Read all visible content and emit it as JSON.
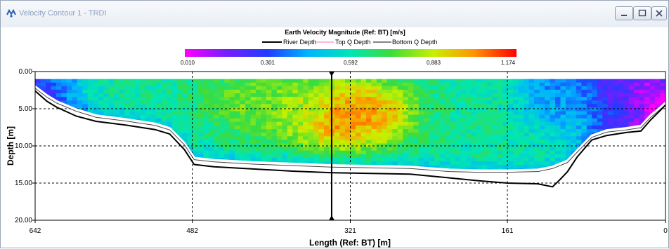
{
  "window": {
    "title": "Velocity Contour 1 - TRDI",
    "icons": {
      "app": "trdi-logo-icon",
      "minimize": "minimize-icon",
      "maximize": "maximize-icon",
      "close": "close-icon"
    }
  },
  "chart_data": {
    "type": "heatmap",
    "title": "Earth Velocity Magnitude (Ref: BT) [m/s]",
    "legend": {
      "placement": "top-center",
      "entries": [
        "River Depth",
        "Top Q Depth",
        "Bottom Q Depth"
      ]
    },
    "colorbar": {
      "ticks": [
        "0.010",
        "0.301",
        "0.592",
        "0.883",
        "1.174"
      ],
      "min": 0.01,
      "max": 1.174
    },
    "xlabel": "Length (Ref: BT) [m]",
    "ylabel": "Depth [m]",
    "xticks": [
      "642",
      "482",
      "321",
      "161",
      "0"
    ],
    "yticks": [
      "0.00",
      "5.00",
      "10.00",
      "15.00",
      "20.00"
    ],
    "xlim": [
      642,
      0
    ],
    "ylim": [
      0,
      20
    ],
    "grid": true,
    "marker_x": 340,
    "river_depth": [
      [
        642,
        2.6
      ],
      [
        630,
        4.0
      ],
      [
        620,
        4.8
      ],
      [
        600,
        6.0
      ],
      [
        580,
        6.7
      ],
      [
        550,
        7.2
      ],
      [
        520,
        7.8
      ],
      [
        505,
        8.4
      ],
      [
        490,
        10.5
      ],
      [
        480,
        12.5
      ],
      [
        460,
        12.8
      ],
      [
        420,
        13.1
      ],
      [
        380,
        13.4
      ],
      [
        340,
        13.6
      ],
      [
        300,
        13.7
      ],
      [
        260,
        13.8
      ],
      [
        220,
        14.3
      ],
      [
        190,
        14.7
      ],
      [
        161,
        15.0
      ],
      [
        130,
        15.1
      ],
      [
        115,
        15.5
      ],
      [
        108,
        14.6
      ],
      [
        100,
        13.5
      ],
      [
        90,
        11.5
      ],
      [
        75,
        9.2
      ],
      [
        60,
        8.6
      ],
      [
        40,
        8.2
      ],
      [
        25,
        8.0
      ],
      [
        15,
        6.5
      ],
      [
        5,
        5.2
      ],
      [
        0,
        4.5
      ]
    ],
    "bottom_q_depth": [
      [
        642,
        2.0
      ],
      [
        630,
        3.2
      ],
      [
        620,
        4.0
      ],
      [
        600,
        5.1
      ],
      [
        580,
        5.9
      ],
      [
        550,
        6.4
      ],
      [
        520,
        7.0
      ],
      [
        505,
        7.6
      ],
      [
        490,
        9.6
      ],
      [
        480,
        11.6
      ],
      [
        460,
        11.9
      ],
      [
        420,
        12.2
      ],
      [
        380,
        12.4
      ],
      [
        340,
        12.6
      ],
      [
        300,
        12.7
      ],
      [
        260,
        12.8
      ],
      [
        220,
        13.2
      ],
      [
        190,
        13.3
      ],
      [
        161,
        13.3
      ],
      [
        130,
        13.2
      ],
      [
        115,
        12.8
      ],
      [
        100,
        12.0
      ],
      [
        90,
        10.6
      ],
      [
        75,
        8.6
      ],
      [
        60,
        7.9
      ],
      [
        40,
        7.6
      ],
      [
        25,
        7.3
      ],
      [
        15,
        5.9
      ],
      [
        5,
        4.8
      ],
      [
        0,
        4.2
      ]
    ],
    "top_q_depth": 1.0,
    "velocity_field": {
      "cells_x": 120,
      "cells_y": 27,
      "depth_range": [
        1.0,
        14.0
      ],
      "hotspots": [
        {
          "x": 335,
          "depth": 6.0,
          "value": 1.15
        },
        {
          "x": 300,
          "depth": 5.5,
          "value": 1.0
        },
        {
          "x": 380,
          "depth": 5.0,
          "value": 0.85
        },
        {
          "x": 430,
          "depth": 4.0,
          "value": 0.78
        }
      ],
      "low_zones": [
        {
          "x": 20,
          "depth": 3.0,
          "value": 0.02
        },
        {
          "x": 60,
          "depth": 2.0,
          "value": 0.2
        },
        {
          "x": 110,
          "depth": 2.5,
          "value": 0.4
        },
        {
          "x": 630,
          "depth": 1.5,
          "value": 0.35
        }
      ],
      "background_value": 0.62
    }
  }
}
